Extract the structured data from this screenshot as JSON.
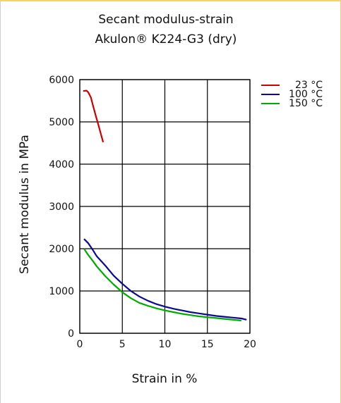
{
  "chart_data": {
    "type": "line",
    "title": "Secant modulus-strain",
    "subtitle": "Akulon® K224-G3 (dry)",
    "xlabel": "Strain in %",
    "ylabel": "Secant modulus in MPa",
    "xlim": [
      0,
      20
    ],
    "ylim": [
      0,
      6000
    ],
    "xticks": [
      "0",
      "5",
      "10",
      "15",
      "20"
    ],
    "yticks": [
      "0",
      "1000",
      "2000",
      "3000",
      "4000",
      "5000",
      "6000"
    ],
    "grid": true,
    "legend_position": "top-right",
    "series": [
      {
        "name": "23 °C",
        "color": "#cc0000",
        "x": [
          0.4,
          0.8,
          1.0,
          1.3,
          1.6,
          1.9,
          2.2,
          2.5,
          2.75
        ],
        "y": [
          5730,
          5740,
          5700,
          5580,
          5350,
          5130,
          4920,
          4700,
          4520
        ]
      },
      {
        "name": "100 °C",
        "color": "#0a0a8c",
        "x": [
          0.5,
          1.0,
          1.5,
          2.0,
          3.0,
          4.0,
          5.0,
          6.0,
          7.0,
          8.0,
          9.0,
          10.0,
          11.0,
          12.0,
          13.0,
          14.0,
          15.0,
          16.0,
          17.0,
          18.0,
          19.0,
          19.6
        ],
        "y": [
          2230,
          2130,
          1980,
          1820,
          1600,
          1360,
          1170,
          1000,
          870,
          770,
          690,
          630,
          580,
          540,
          500,
          470,
          440,
          410,
          390,
          370,
          350,
          320
        ]
      },
      {
        "name": "150 °C",
        "color": "#00aa00",
        "x": [
          0.5,
          1.0,
          1.5,
          2.0,
          3.0,
          4.0,
          5.0,
          6.0,
          7.0,
          8.0,
          9.0,
          10.0,
          11.0,
          12.0,
          13.0,
          14.0,
          15.0,
          16.0,
          17.0,
          18.0,
          19.0
        ],
        "y": [
          2000,
          1850,
          1720,
          1580,
          1350,
          1150,
          970,
          830,
          720,
          650,
          590,
          540,
          500,
          460,
          430,
          400,
          380,
          360,
          340,
          320,
          300
        ]
      }
    ]
  }
}
